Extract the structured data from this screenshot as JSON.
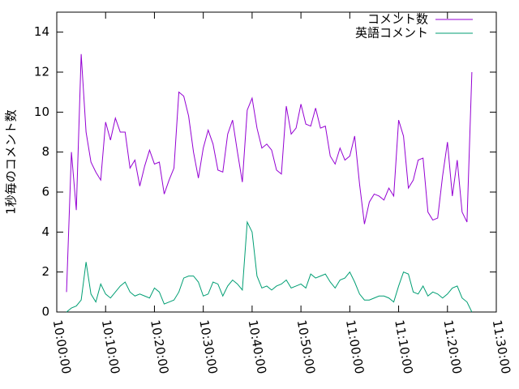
{
  "chart_data": {
    "type": "line",
    "y_label": "1秒毎のコメント数",
    "x": [
      "10:02:00",
      "10:03:00",
      "10:04:00",
      "10:05:00",
      "10:06:00",
      "10:07:00",
      "10:08:00",
      "10:09:00",
      "10:10:00",
      "10:11:00",
      "10:12:00",
      "10:13:00",
      "10:14:00",
      "10:15:00",
      "10:16:00",
      "10:17:00",
      "10:18:00",
      "10:19:00",
      "10:20:00",
      "10:21:00",
      "10:22:00",
      "10:23:00",
      "10:24:00",
      "10:25:00",
      "10:26:00",
      "10:27:00",
      "10:28:00",
      "10:29:00",
      "10:30:00",
      "10:31:00",
      "10:32:00",
      "10:33:00",
      "10:34:00",
      "10:35:00",
      "10:36:00",
      "10:37:00",
      "10:38:00",
      "10:39:00",
      "10:40:00",
      "10:41:00",
      "10:42:00",
      "10:43:00",
      "10:44:00",
      "10:45:00",
      "10:46:00",
      "10:47:00",
      "10:48:00",
      "10:49:00",
      "10:50:00",
      "10:51:00",
      "10:52:00",
      "10:53:00",
      "10:54:00",
      "10:55:00",
      "10:56:00",
      "10:57:00",
      "10:58:00",
      "10:59:00",
      "11:00:00",
      "11:01:00",
      "11:02:00",
      "11:03:00",
      "11:04:00",
      "11:05:00",
      "11:06:00",
      "11:07:00",
      "11:08:00",
      "11:09:00",
      "11:10:00",
      "11:11:00",
      "11:12:00",
      "11:13:00",
      "11:14:00",
      "11:15:00",
      "11:16:00",
      "11:17:00",
      "11:18:00",
      "11:19:00",
      "11:20:00",
      "11:21:00",
      "11:22:00",
      "11:23:00",
      "11:24:00",
      "11:25:00"
    ],
    "series": [
      {
        "name": "コメント数",
        "color": "#9400d3",
        "values": [
          1.0,
          8.0,
          5.1,
          12.9,
          9.0,
          7.5,
          7.0,
          6.6,
          9.5,
          8.6,
          9.7,
          9.0,
          9.0,
          7.2,
          7.6,
          6.3,
          7.3,
          8.1,
          7.4,
          7.5,
          5.9,
          6.6,
          7.2,
          11.0,
          10.8,
          9.8,
          8.0,
          6.7,
          8.2,
          9.1,
          8.4,
          7.1,
          7.0,
          8.9,
          9.6,
          8.0,
          6.5,
          10.1,
          10.7,
          9.2,
          8.2,
          8.4,
          8.1,
          7.1,
          6.9,
          10.3,
          8.9,
          9.2,
          10.4,
          9.4,
          9.3,
          10.2,
          9.2,
          9.3,
          7.8,
          7.4,
          8.2,
          7.6,
          7.8,
          8.8,
          6.4,
          4.4,
          5.5,
          5.9,
          5.8,
          5.6,
          6.2,
          5.8,
          9.6,
          8.8,
          6.2,
          6.6,
          7.6,
          7.7,
          5.0,
          4.6,
          4.7,
          6.8,
          8.5,
          5.8,
          7.6,
          5.0,
          4.5,
          12.0
        ]
      },
      {
        "name": "英語コメント",
        "color": "#009e73",
        "values": [
          0.0,
          0.2,
          0.3,
          0.6,
          2.5,
          0.9,
          0.5,
          1.4,
          0.9,
          0.7,
          1.0,
          1.3,
          1.5,
          1.0,
          0.8,
          0.9,
          0.8,
          0.7,
          1.2,
          1.0,
          0.4,
          0.5,
          0.6,
          1.0,
          1.7,
          1.8,
          1.8,
          1.5,
          0.8,
          0.9,
          1.5,
          1.4,
          0.8,
          1.3,
          1.6,
          1.4,
          1.1,
          4.5,
          4.0,
          1.8,
          1.2,
          1.3,
          1.1,
          1.3,
          1.4,
          1.6,
          1.2,
          1.3,
          1.4,
          1.2,
          1.9,
          1.7,
          1.8,
          1.9,
          1.5,
          1.2,
          1.6,
          1.7,
          2.0,
          1.5,
          0.9,
          0.6,
          0.6,
          0.7,
          0.8,
          0.8,
          0.7,
          0.5,
          1.3,
          2.0,
          1.9,
          1.0,
          0.9,
          1.3,
          0.8,
          1.0,
          0.9,
          0.7,
          0.9,
          1.2,
          1.3,
          0.7,
          0.5,
          0.0
        ]
      }
    ],
    "xlim": [
      "10:00:00",
      "11:30:00"
    ],
    "xticks": [
      "10:00:00",
      "10:10:00",
      "10:20:00",
      "10:30:00",
      "10:40:00",
      "10:50:00",
      "11:00:00",
      "11:10:00",
      "11:20:00",
      "11:30:00"
    ],
    "ylim": [
      0,
      15
    ],
    "yticks": [
      0,
      2,
      4,
      6,
      8,
      10,
      12,
      14
    ],
    "grid": false,
    "legend": "top-right"
  }
}
